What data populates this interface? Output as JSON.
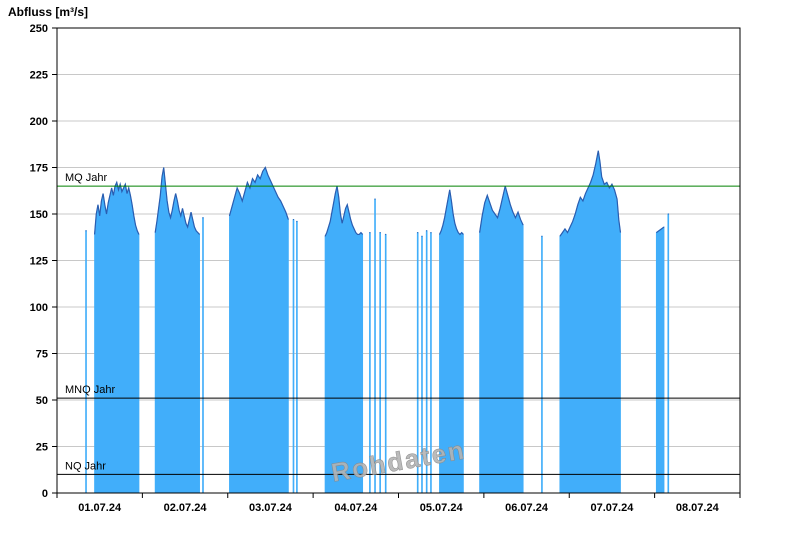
{
  "header": {
    "title": "Abfluss [m³/s]"
  },
  "colors": {
    "area_fill": "#41aefa",
    "area_stroke": "#2a5db0",
    "grid": "#c8c8c8",
    "axis": "#000000",
    "mq_color": "#008000",
    "mnq_color": "#000000",
    "nq_color": "#000000",
    "watermark_fill": "#b4b4b4",
    "watermark_stroke": "#8a8a8a",
    "background": "#ffffff"
  },
  "chart_data": {
    "type": "area",
    "title": "Abfluss [m³/s]",
    "ylabel": "Abfluss [m³/s]",
    "xlabel": "",
    "unit": "m³/s",
    "ylim": [
      0,
      250
    ],
    "yticks": [
      0,
      25,
      50,
      75,
      100,
      125,
      150,
      175,
      200,
      225,
      250
    ],
    "x_range_days": [
      0,
      8
    ],
    "x_days": [
      "01.07.24",
      "02.07.24",
      "03.07.24",
      "04.07.24",
      "05.07.24",
      "06.07.24",
      "07.07.24",
      "08.07.24"
    ],
    "grid": "horizontal",
    "legend": "none",
    "watermark": "Rohdaten",
    "reference_lines": [
      {
        "label": "MQ Jahr",
        "value": 165,
        "color": "#008000"
      },
      {
        "label": "MNQ Jahr",
        "value": 51,
        "color": "#000000"
      },
      {
        "label": "NQ Jahr",
        "value": 10,
        "color": "#000000"
      }
    ],
    "series": [
      {
        "name": "Abfluss Rohdaten",
        "x_unit": "days since 01.07.24 00:00",
        "segments": [
          [
            [
              0.335,
              141
            ],
            [
              0.345,
              141
            ]
          ],
          [
            [
              0.44,
              139
            ],
            [
              0.46,
              150
            ],
            [
              0.48,
              155
            ],
            [
              0.5,
              149
            ],
            [
              0.52,
              157
            ],
            [
              0.54,
              161
            ],
            [
              0.56,
              155
            ],
            [
              0.58,
              150
            ],
            [
              0.6,
              156
            ],
            [
              0.62,
              160
            ],
            [
              0.64,
              164
            ],
            [
              0.66,
              160
            ],
            [
              0.68,
              165
            ],
            [
              0.7,
              167
            ],
            [
              0.72,
              163
            ],
            [
              0.74,
              166
            ],
            [
              0.76,
              162
            ],
            [
              0.78,
              164
            ],
            [
              0.8,
              166
            ],
            [
              0.82,
              161
            ],
            [
              0.84,
              164
            ],
            [
              0.86,
              160
            ],
            [
              0.88,
              155
            ],
            [
              0.9,
              149
            ],
            [
              0.92,
              144
            ],
            [
              0.94,
              141
            ],
            [
              0.96,
              139
            ]
          ],
          [
            [
              1.15,
              140
            ],
            [
              1.17,
              146
            ],
            [
              1.19,
              153
            ],
            [
              1.21,
              160
            ],
            [
              1.23,
              170
            ],
            [
              1.25,
              175
            ],
            [
              1.27,
              166
            ],
            [
              1.29,
              157
            ],
            [
              1.31,
              151
            ],
            [
              1.33,
              148
            ],
            [
              1.35,
              152
            ],
            [
              1.37,
              157
            ],
            [
              1.39,
              161
            ],
            [
              1.41,
              157
            ],
            [
              1.43,
              152
            ],
            [
              1.45,
              149
            ],
            [
              1.47,
              153
            ],
            [
              1.49,
              149
            ],
            [
              1.51,
              145
            ],
            [
              1.53,
              143
            ],
            [
              1.55,
              147
            ],
            [
              1.57,
              151
            ],
            [
              1.59,
              147
            ],
            [
              1.61,
              143
            ],
            [
              1.63,
              141
            ],
            [
              1.65,
              140
            ],
            [
              1.67,
              139
            ]
          ],
          [
            [
              1.705,
              148
            ],
            [
              1.715,
              148
            ]
          ],
          [
            [
              2.02,
              149
            ],
            [
              2.05,
              154
            ],
            [
              2.08,
              159
            ],
            [
              2.11,
              164
            ],
            [
              2.14,
              161
            ],
            [
              2.17,
              157
            ],
            [
              2.2,
              162
            ],
            [
              2.23,
              167
            ],
            [
              2.26,
              164
            ],
            [
              2.29,
              169
            ],
            [
              2.32,
              167
            ],
            [
              2.35,
              171
            ],
            [
              2.38,
              169
            ],
            [
              2.41,
              173
            ],
            [
              2.44,
              175
            ],
            [
              2.47,
              171
            ],
            [
              2.5,
              168
            ],
            [
              2.53,
              165
            ],
            [
              2.56,
              162
            ],
            [
              2.59,
              159
            ],
            [
              2.62,
              157
            ],
            [
              2.65,
              154
            ],
            [
              2.68,
              151
            ],
            [
              2.71,
              147
            ]
          ],
          [
            [
              2.765,
              147
            ],
            [
              2.775,
              147
            ]
          ],
          [
            [
              2.805,
              146
            ],
            [
              2.815,
              146
            ]
          ],
          [
            [
              3.14,
              138
            ],
            [
              3.16,
              140
            ],
            [
              3.18,
              143
            ],
            [
              3.2,
              146
            ],
            [
              3.22,
              151
            ],
            [
              3.24,
              156
            ],
            [
              3.26,
              161
            ],
            [
              3.28,
              165
            ],
            [
              3.3,
              159
            ],
            [
              3.32,
              150
            ],
            [
              3.34,
              145
            ],
            [
              3.36,
              149
            ],
            [
              3.38,
              153
            ],
            [
              3.4,
              155
            ],
            [
              3.42,
              151
            ],
            [
              3.44,
              147
            ],
            [
              3.46,
              144
            ],
            [
              3.48,
              142
            ],
            [
              3.5,
              140
            ],
            [
              3.52,
              139
            ],
            [
              3.54,
              139
            ],
            [
              3.56,
              140
            ],
            [
              3.58,
              139
            ]
          ],
          [
            [
              3.66,
              140
            ],
            [
              3.67,
              140
            ]
          ],
          [
            [
              3.72,
              158
            ],
            [
              3.73,
              158
            ]
          ],
          [
            [
              3.78,
              140
            ],
            [
              3.79,
              140
            ]
          ],
          [
            [
              3.845,
              139
            ],
            [
              3.855,
              139
            ]
          ],
          [
            [
              4.22,
              140
            ],
            [
              4.23,
              140
            ]
          ],
          [
            [
              4.27,
              138
            ],
            [
              4.28,
              138
            ]
          ],
          [
            [
              4.325,
              141
            ],
            [
              4.335,
              141
            ]
          ],
          [
            [
              4.375,
              140
            ],
            [
              4.385,
              140
            ]
          ],
          [
            [
              4.48,
              139
            ],
            [
              4.5,
              141
            ],
            [
              4.52,
              144
            ],
            [
              4.54,
              148
            ],
            [
              4.56,
              153
            ],
            [
              4.58,
              158
            ],
            [
              4.6,
              163
            ],
            [
              4.62,
              157
            ],
            [
              4.64,
              150
            ],
            [
              4.66,
              145
            ],
            [
              4.68,
              142
            ],
            [
              4.7,
              140
            ],
            [
              4.72,
              139
            ],
            [
              4.74,
              140
            ],
            [
              4.76,
              139
            ]
          ],
          [
            [
              4.95,
              140
            ],
            [
              4.98,
              149
            ],
            [
              5.01,
              156
            ],
            [
              5.04,
              160
            ],
            [
              5.07,
              156
            ],
            [
              5.1,
              152
            ],
            [
              5.13,
              150
            ],
            [
              5.16,
              148
            ],
            [
              5.19,
              153
            ],
            [
              5.22,
              159
            ],
            [
              5.25,
              165
            ],
            [
              5.28,
              160
            ],
            [
              5.31,
              155
            ],
            [
              5.34,
              151
            ],
            [
              5.37,
              148
            ],
            [
              5.4,
              151
            ],
            [
              5.43,
              147
            ],
            [
              5.46,
              144
            ]
          ],
          [
            [
              5.675,
              138
            ],
            [
              5.685,
              138
            ]
          ],
          [
            [
              5.89,
              138
            ],
            [
              5.92,
              140
            ],
            [
              5.95,
              142
            ],
            [
              5.98,
              140
            ],
            [
              6.01,
              143
            ],
            [
              6.04,
              146
            ],
            [
              6.07,
              150
            ],
            [
              6.1,
              155
            ],
            [
              6.13,
              159
            ],
            [
              6.16,
              157
            ],
            [
              6.19,
              161
            ],
            [
              6.22,
              164
            ],
            [
              6.25,
              167
            ],
            [
              6.28,
              171
            ],
            [
              6.31,
              177
            ],
            [
              6.34,
              184
            ],
            [
              6.36,
              178
            ],
            [
              6.38,
              170
            ],
            [
              6.41,
              166
            ],
            [
              6.44,
              167
            ],
            [
              6.47,
              164
            ],
            [
              6.5,
              166
            ],
            [
              6.53,
              163
            ],
            [
              6.56,
              158
            ],
            [
              6.58,
              147
            ],
            [
              6.6,
              140
            ]
          ],
          [
            [
              7.02,
              140
            ],
            [
              7.05,
              141
            ],
            [
              7.08,
              142
            ],
            [
              7.11,
              143
            ]
          ],
          [
            [
              7.155,
              150
            ],
            [
              7.165,
              150
            ]
          ]
        ]
      }
    ]
  }
}
